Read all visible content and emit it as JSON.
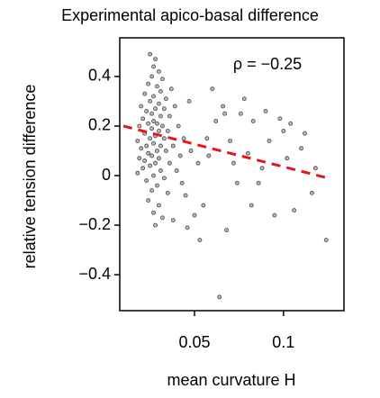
{
  "chart_data": {
    "type": "scatter",
    "title": "Experimental apico-basal difference",
    "xlabel": "mean curvature H",
    "ylabel": "relative tension difference",
    "annotation": "ρ = −0.25",
    "xlim": [
      0.008,
      0.134
    ],
    "xticks": [
      0.05,
      0.1
    ],
    "ylim": [
      -0.545,
      0.556
    ],
    "yticks": [
      0.4,
      0.2,
      0.0,
      {
        "value": -0.2,
        "label": "−0.2"
      },
      {
        "value": -0.4,
        "label": "−0.4"
      }
    ],
    "series": [
      {
        "color": "#555555",
        "x": [
          0.025,
          0.028,
          0.027,
          0.03,
          0.026,
          0.032,
          0.024,
          0.029,
          0.031,
          0.022,
          0.027,
          0.034,
          0.025,
          0.03,
          0.02,
          0.028,
          0.033,
          0.023,
          0.026,
          0.031,
          0.036,
          0.021,
          0.027,
          0.029,
          0.024,
          0.032,
          0.019,
          0.026,
          0.03,
          0.035,
          0.022,
          0.028,
          0.025,
          0.033,
          0.018,
          0.027,
          0.031,
          0.023,
          0.02,
          0.029,
          0.034,
          0.024,
          0.026,
          0.019,
          0.03,
          0.022,
          0.028,
          0.036,
          0.025,
          0.021,
          0.031,
          0.018,
          0.027,
          0.033,
          0.023,
          0.029,
          0.026,
          0.035,
          0.024,
          0.03,
          0.027,
          0.032,
          0.028,
          0.038,
          0.04,
          0.038,
          0.041,
          0.039,
          0.037,
          0.042,
          0.044,
          0.043,
          0.045,
          0.047,
          0.048,
          0.05,
          0.046,
          0.052,
          0.055,
          0.058,
          0.06,
          0.062,
          0.064,
          0.066,
          0.067,
          0.068,
          0.07,
          0.072,
          0.074,
          0.076,
          0.078,
          0.08,
          0.082,
          0.083,
          0.086,
          0.088,
          0.09,
          0.092,
          0.095,
          0.098,
          0.1,
          0.102,
          0.104,
          0.106,
          0.11,
          0.112,
          0.116,
          0.118,
          0.124,
          0.053,
          0.057
        ],
        "y": [
          0.49,
          0.47,
          0.44,
          0.42,
          0.4,
          0.39,
          0.37,
          0.36,
          0.34,
          0.33,
          0.32,
          0.31,
          0.3,
          0.29,
          0.28,
          0.27,
          0.27,
          0.26,
          0.25,
          0.24,
          0.24,
          0.23,
          0.22,
          0.21,
          0.21,
          0.2,
          0.2,
          0.19,
          0.18,
          0.18,
          0.17,
          0.16,
          0.15,
          0.15,
          0.14,
          0.13,
          0.12,
          0.12,
          0.11,
          0.1,
          0.1,
          0.09,
          0.08,
          0.07,
          0.07,
          0.06,
          0.05,
          0.05,
          0.04,
          0.03,
          0.02,
          0.01,
          0.0,
          -0.01,
          -0.02,
          -0.04,
          -0.06,
          -0.07,
          -0.1,
          -0.12,
          -0.15,
          -0.17,
          -0.2,
          -0.18,
          0.02,
          0.12,
          0.2,
          0.28,
          0.35,
          0.08,
          0.15,
          -0.03,
          -0.08,
          0.3,
          0.1,
          -0.16,
          -0.21,
          0.05,
          -0.12,
          0.08,
          0.35,
          0.22,
          -0.49,
          0.28,
          0.25,
          -0.22,
          0.14,
          0.05,
          -0.03,
          0.25,
          0.31,
          0.09,
          -0.12,
          0.22,
          -0.03,
          0.03,
          0.26,
          0.14,
          -0.16,
          0.23,
          0.18,
          0.07,
          0.21,
          -0.14,
          0.11,
          0.17,
          -0.07,
          0.03,
          -0.26,
          -0.26,
          0.15
        ]
      }
    ],
    "trend": {
      "color": "#e8141c",
      "x": [
        0.01,
        0.125
      ],
      "y": [
        0.2,
        -0.01
      ]
    }
  }
}
